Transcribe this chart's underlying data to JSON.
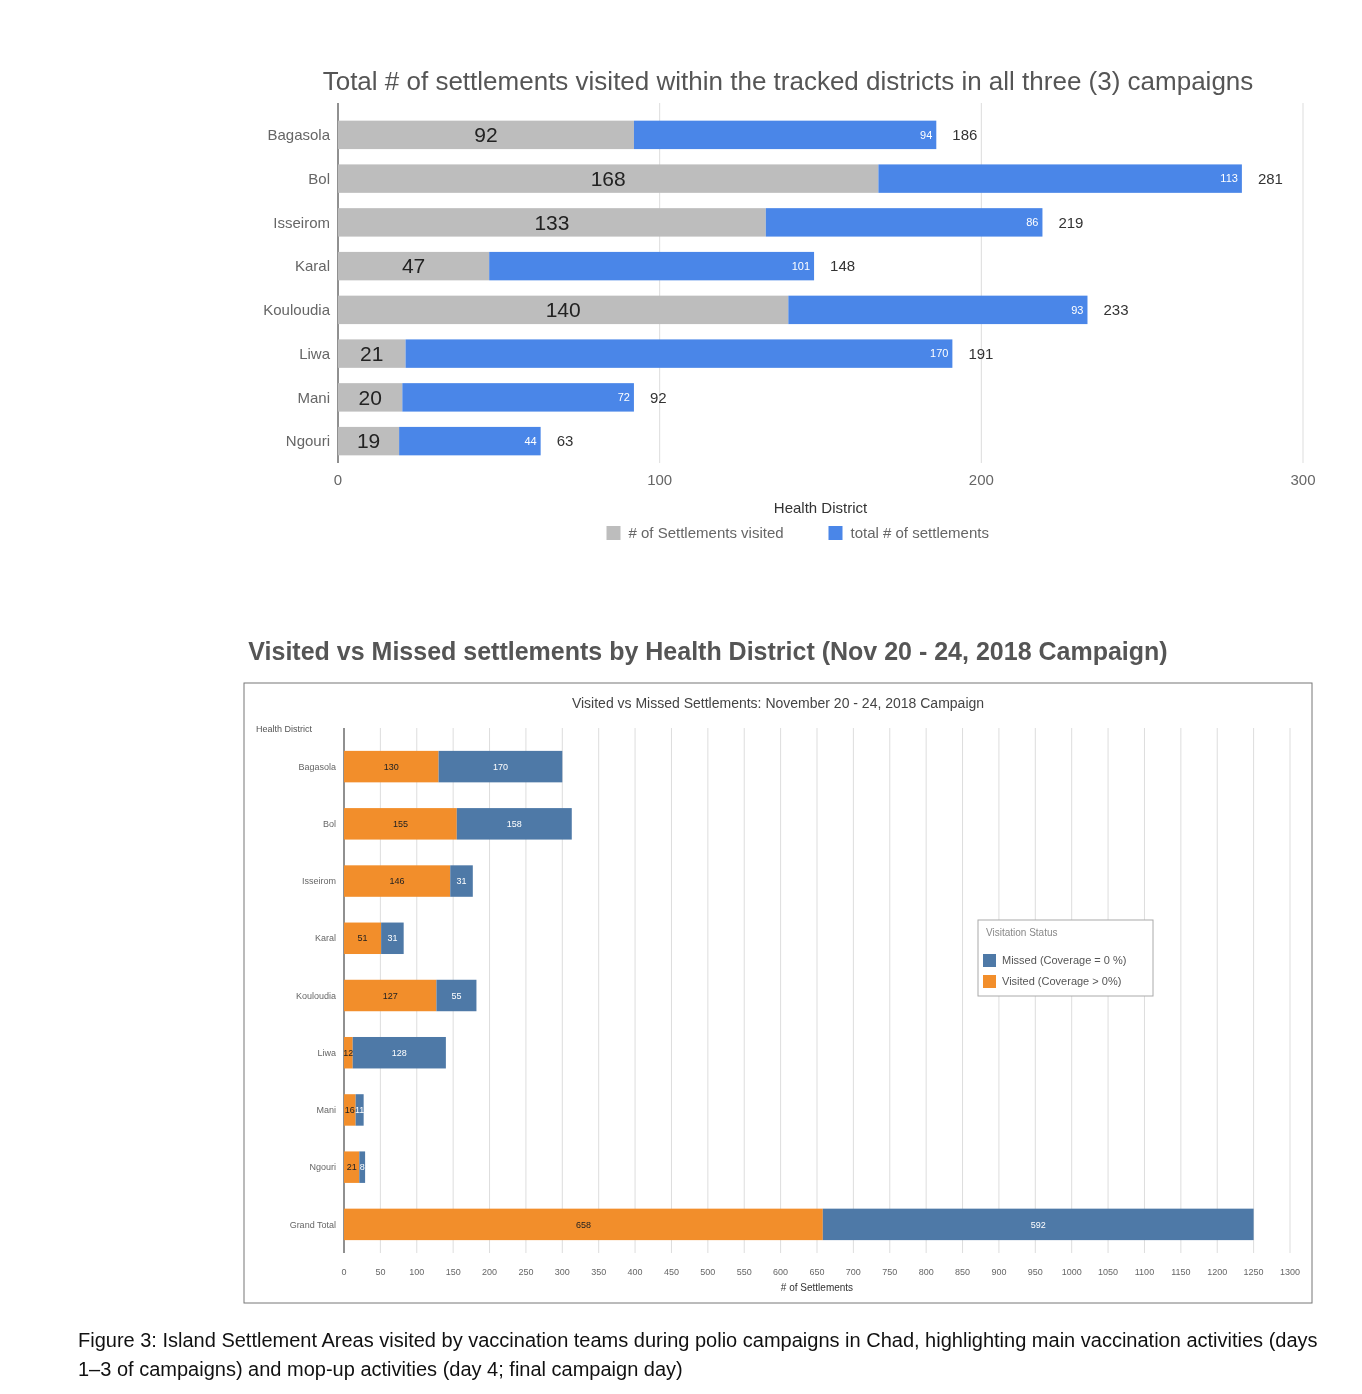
{
  "chart_data": [
    {
      "type": "bar",
      "orientation": "horizontal",
      "stacked": true,
      "title": "Total # of settlements visited within the tracked districts in all three (3) campaigns",
      "xlabel": "Health District",
      "categories": [
        "Bagasola",
        "Bol",
        "Isseirom",
        "Karal",
        "Kouloudia",
        "Liwa",
        "Mani",
        "Ngouri"
      ],
      "series": [
        {
          "name": "# of Settlements visited",
          "color": "#bdbdbd",
          "values": [
            92,
            168,
            133,
            47,
            140,
            21,
            20,
            19
          ]
        },
        {
          "name": "total # of settlements",
          "color": "#4a86e8",
          "values": [
            94,
            113,
            86,
            101,
            93,
            170,
            72,
            44
          ]
        }
      ],
      "totals": [
        "186",
        "281",
        "219",
        "148",
        "233",
        "191",
        "92",
        "63"
      ],
      "xlim": [
        0,
        300
      ],
      "xticks": [
        0,
        100,
        200,
        300
      ],
      "grid": "x",
      "legend": "bottom",
      "data_labels": true
    },
    {
      "type": "bar",
      "orientation": "horizontal",
      "stacked": true,
      "title": "Visited vs Missed settlements by Health District (Nov 20 - 24, 2018 Campaign)",
      "subtitle": "Visited vs Missed Settlements: November 20 - 24, 2018 Campaign",
      "xlabel": "# of Settlements",
      "ylabel": "Health District",
      "legend_title": "Visitation Status",
      "categories": [
        "Bagasola",
        "Bol",
        "Isseirom",
        "Karal",
        "Kouloudia",
        "Liwa",
        "Mani",
        "Ngouri",
        "Grand Total"
      ],
      "series": [
        {
          "name": "Visited (Coverage > 0%)",
          "color": "#f28e2b",
          "values": [
            130,
            155,
            146,
            51,
            127,
            12,
            16,
            21,
            658
          ]
        },
        {
          "name": "Missed (Coverage = 0 %)",
          "color": "#4e79a7",
          "values": [
            170,
            158,
            31,
            31,
            55,
            128,
            11,
            8,
            592
          ]
        }
      ],
      "xlim": [
        0,
        1300
      ],
      "xticks": [
        0,
        50,
        100,
        150,
        200,
        250,
        300,
        350,
        400,
        450,
        500,
        550,
        600,
        650,
        700,
        750,
        800,
        850,
        900,
        950,
        1000,
        1050,
        1100,
        1150,
        1200,
        1250,
        1300
      ],
      "grid": "x",
      "legend": "right",
      "data_labels": true,
      "annotations": [
        "Figure 3: Island Settlement Areas visited by vaccination teams during polio campaigns in Chad, highlighting main vaccination activities (days 1–3 of campaigns) and mop-up activities (day 4; final campaign day)"
      ]
    }
  ]
}
